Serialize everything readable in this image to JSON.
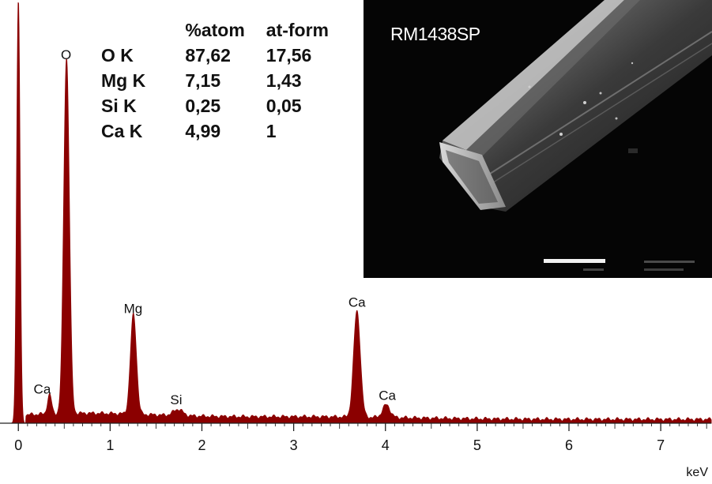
{
  "chart_data": {
    "type": "line",
    "title": "",
    "xlabel": "keV",
    "ylabel": "",
    "xlim": [
      -0.2,
      7.55
    ],
    "ylim": [
      0,
      100
    ],
    "x_ticks": [
      "0",
      "1",
      "2",
      "3",
      "4",
      "5",
      "6",
      "7"
    ],
    "series_color": "#8b0000",
    "peaks": [
      {
        "label": "",
        "x": 0.0,
        "height": 100,
        "width": 0.018
      },
      {
        "label": "Ca",
        "x": 0.34,
        "height": 4.5,
        "width": 0.022
      },
      {
        "label": "O",
        "x": 0.525,
        "height": 84,
        "width": 0.03
      },
      {
        "label": "Mg",
        "x": 1.254,
        "height": 23.5,
        "width": 0.032
      },
      {
        "label": "Si",
        "x": 1.74,
        "height": 1.5,
        "width": 0.05
      },
      {
        "label": "Ca",
        "x": 3.69,
        "height": 25,
        "width": 0.036
      },
      {
        "label": "Ca",
        "x": 4.01,
        "height": 3,
        "width": 0.04
      }
    ],
    "annotations": [
      {
        "text": "O",
        "x": 0.52,
        "y": 86
      },
      {
        "text": "Ca",
        "x": 0.26,
        "y": 7
      },
      {
        "text": "Mg",
        "x": 1.25,
        "y": 26
      },
      {
        "text": "Si",
        "x": 1.72,
        "y": 4.5
      },
      {
        "text": "Ca",
        "x": 3.69,
        "y": 27.5
      },
      {
        "text": "Ca",
        "x": 4.02,
        "y": 5.5
      }
    ]
  },
  "composition_table": {
    "headers": [
      "%atom",
      "at-form"
    ],
    "rows": [
      {
        "element": "O K",
        "atom": "87,62",
        "atform": "17,56"
      },
      {
        "element": "Mg K",
        "atom": "7,15",
        "atform": "1,43"
      },
      {
        "element": "Si K",
        "atom": "0,25",
        "atform": "0,05"
      },
      {
        "element": "Ca K",
        "atom": "4,99",
        "atform": "1"
      }
    ]
  },
  "sem_inset": {
    "label": "RM1438SP"
  }
}
